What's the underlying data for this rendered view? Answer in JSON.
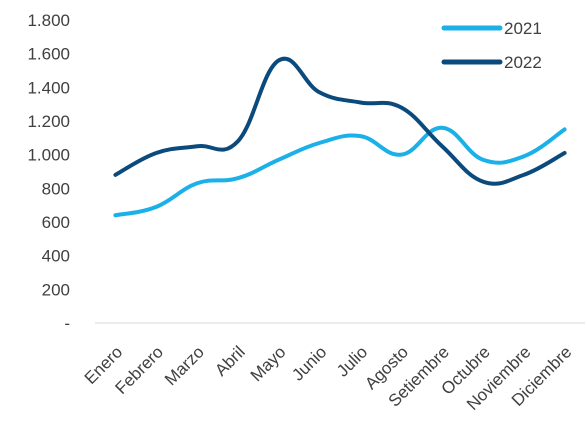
{
  "chart_data": {
    "type": "line",
    "title": "",
    "xlabel": "",
    "ylabel": "",
    "categories": [
      "Enero",
      "Febrero",
      "Marzo",
      "Abril",
      "Mayo",
      "Junio",
      "Julio",
      "Agosto",
      "Setiembre",
      "Octubre",
      "Noviembre",
      "Diciembre"
    ],
    "ylim": [
      0,
      1800
    ],
    "y_ticks": [
      0,
      200,
      400,
      600,
      800,
      1000,
      1200,
      1400,
      1600,
      1800
    ],
    "y_tick_labels": [
      "-",
      "200",
      "400",
      "600",
      "800",
      "1.000",
      "1.200",
      "1.400",
      "1.600",
      "1.800"
    ],
    "grid": false,
    "legend_position": "top-right",
    "series": [
      {
        "name": "2021",
        "color": "#1AB0E8",
        "values": [
          640,
          690,
          830,
          860,
          970,
          1070,
          1110,
          1000,
          1160,
          970,
          990,
          1150
        ]
      },
      {
        "name": "2022",
        "color": "#0B4A7D",
        "values": [
          880,
          1010,
          1050,
          1080,
          1560,
          1370,
          1310,
          1280,
          1050,
          840,
          880,
          1010
        ]
      }
    ]
  }
}
